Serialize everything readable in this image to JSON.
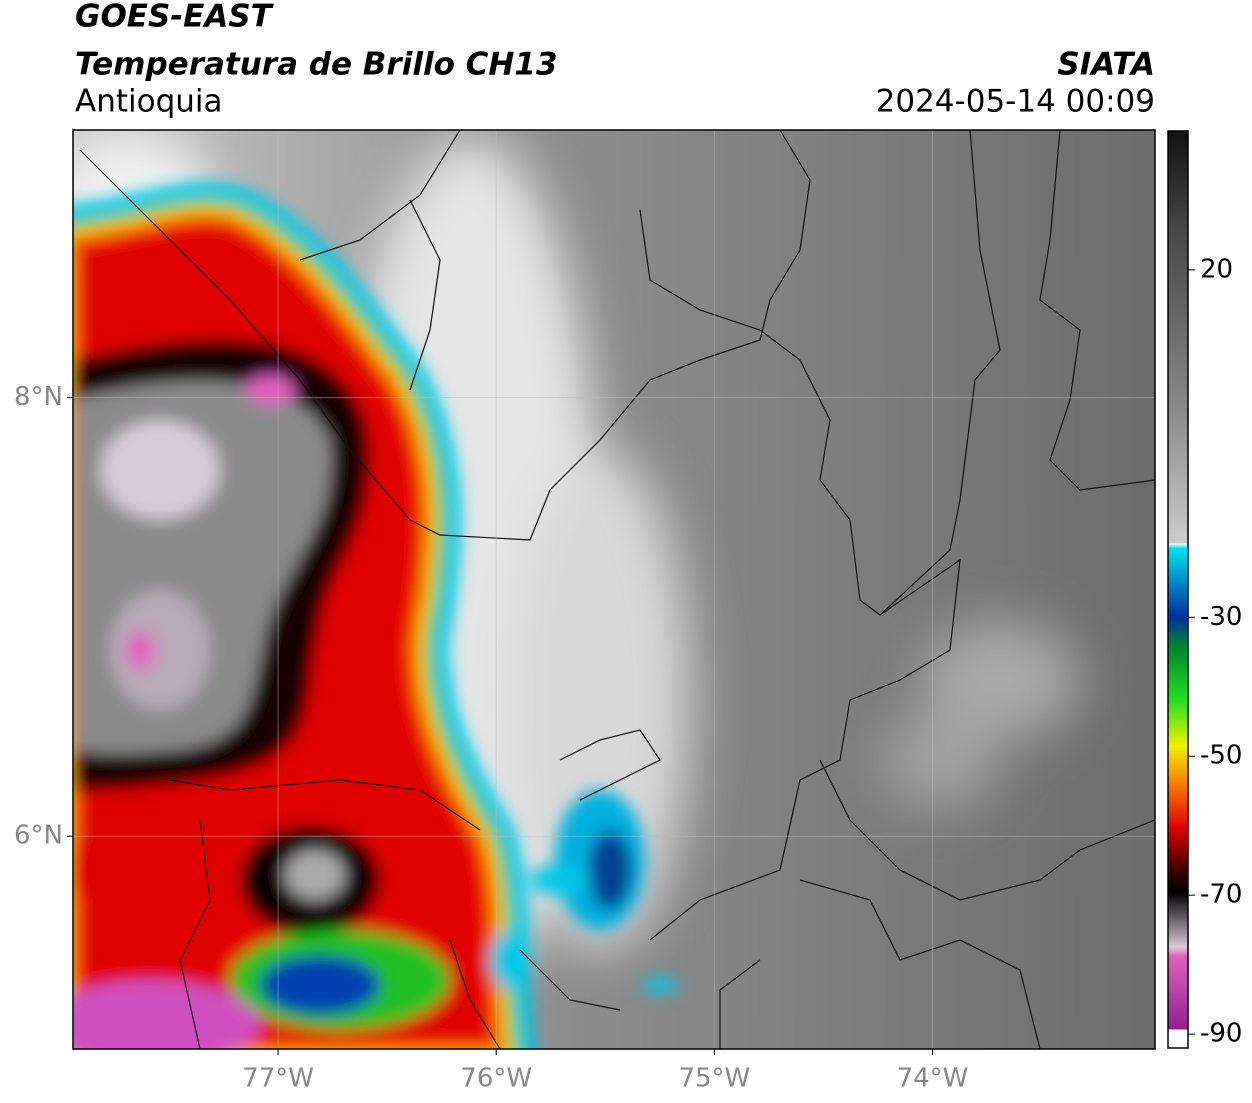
{
  "header": {
    "title": "GOES-EAST",
    "subtitle": "Temperatura de Brillo CH13",
    "region": "Antioquia",
    "source": "SIATA",
    "timestamp": "2024-05-14 00:09"
  },
  "map": {
    "xlim": [
      -77.94,
      -72.98
    ],
    "ylim": [
      5.03,
      9.22
    ],
    "xticks": [
      {
        "value": -77,
        "label": "77°W"
      },
      {
        "value": -76,
        "label": "76°W"
      },
      {
        "value": -75,
        "label": "75°W"
      },
      {
        "value": -74,
        "label": "74°W"
      }
    ],
    "yticks": [
      {
        "value": 6,
        "label": "6°N"
      },
      {
        "value": 8,
        "label": "8°N"
      }
    ]
  },
  "colorbar": {
    "lim": [
      -92,
      40
    ],
    "ticks": [
      20,
      -30,
      -50,
      -70,
      -90
    ]
  }
}
